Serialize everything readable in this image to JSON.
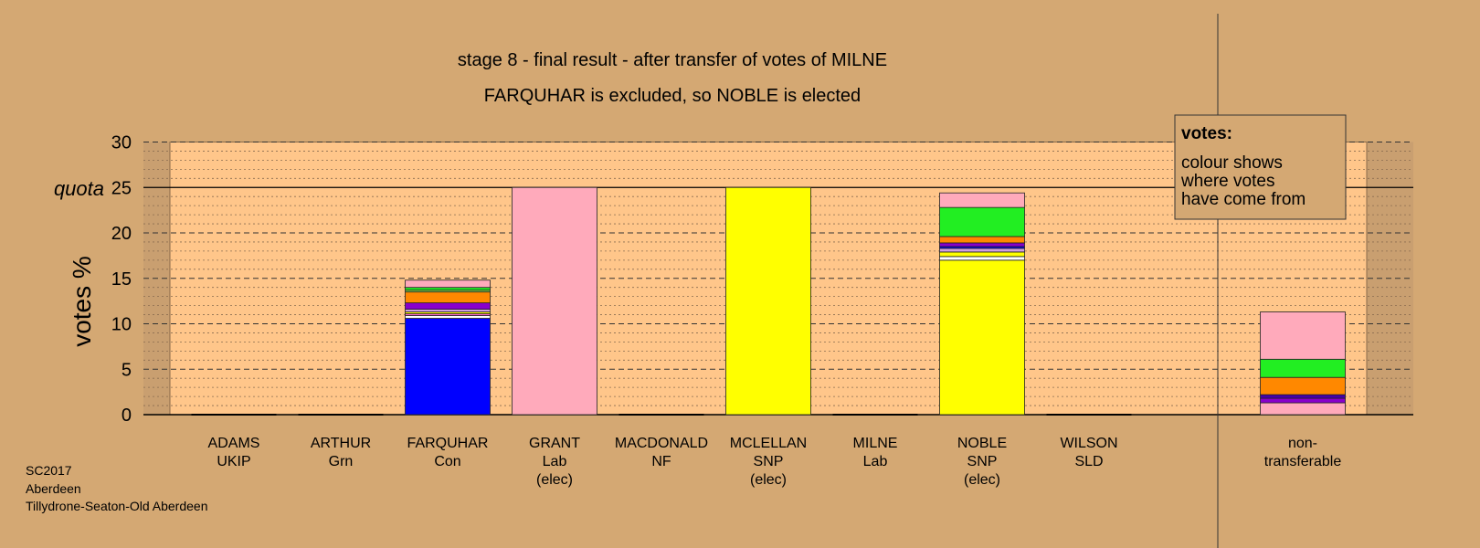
{
  "chart_data": {
    "type": "bar",
    "stacked": true,
    "title": "stage 8 - final result - after transfer of votes of MILNE",
    "subtitle": "FARQUHAR is excluded, so NOBLE is elected",
    "ylabel": "votes %",
    "ylim": [
      0,
      30
    ],
    "yticks": [
      "0",
      "5",
      "10",
      "15",
      "20",
      "25",
      "30"
    ],
    "quota_label": "quota",
    "quota": 25,
    "grid": true,
    "legend_position": "top-right",
    "legend": {
      "title": "votes:",
      "lines": [
        "colour shows",
        "where votes",
        "have come from"
      ]
    },
    "categories": [
      {
        "name": "ADAMS",
        "party": "UKIP",
        "status": ""
      },
      {
        "name": "ARTHUR",
        "party": "Grn",
        "status": ""
      },
      {
        "name": "FARQUHAR",
        "party": "Con",
        "status": ""
      },
      {
        "name": "GRANT",
        "party": "Lab",
        "status": "(elec)"
      },
      {
        "name": "MACDONALD",
        "party": "NF",
        "status": ""
      },
      {
        "name": "MCLELLAN",
        "party": "SNP",
        "status": "(elec)"
      },
      {
        "name": "MILNE",
        "party": "Lab",
        "status": ""
      },
      {
        "name": "NOBLE",
        "party": "SNP",
        "status": "(elec)"
      },
      {
        "name": "WILSON",
        "party": "SLD",
        "status": ""
      },
      {
        "name": "non-",
        "party": "transferable",
        "status": ""
      }
    ],
    "bars": [
      [],
      [],
      [
        {
          "color": "#0000ff",
          "value": 10.6
        },
        {
          "color": "#ffffff",
          "value": 0.3
        },
        {
          "color": "#ff66cc",
          "value": 0.2
        },
        {
          "color": "#ffff00",
          "value": 0.2
        },
        {
          "color": "#d1a0e0",
          "value": 0.3
        },
        {
          "color": "#8800cc",
          "value": 0.7
        },
        {
          "color": "#ff8800",
          "value": 1.2
        },
        {
          "color": "#88cc44",
          "value": 0.2
        },
        {
          "color": "#22ee22",
          "value": 0.3
        },
        {
          "color": "#ffaabb",
          "value": 0.8
        }
      ],
      [
        {
          "color": "#ffaabb",
          "value": 25.0
        }
      ],
      [],
      [
        {
          "color": "#ffff00",
          "value": 25.0
        }
      ],
      [],
      [
        {
          "color": "#ffff00",
          "value": 17.0
        },
        {
          "color": "#ffffff",
          "value": 0.4
        },
        {
          "color": "#ffff00",
          "value": 0.5
        },
        {
          "color": "#d1a0e0",
          "value": 0.4
        },
        {
          "color": "#0000ff",
          "value": 0.2
        },
        {
          "color": "#8800cc",
          "value": 0.4
        },
        {
          "color": "#ff8800",
          "value": 0.7
        },
        {
          "color": "#22ee22",
          "value": 3.2
        },
        {
          "color": "#ffaabb",
          "value": 1.6
        }
      ],
      [],
      [
        {
          "color": "#ffaabb",
          "value": 1.3
        },
        {
          "color": "#8800cc",
          "value": 0.5
        },
        {
          "color": "#4400aa",
          "value": 0.4
        },
        {
          "color": "#ff8800",
          "value": 1.9
        },
        {
          "color": "#22ee22",
          "value": 2.0
        },
        {
          "color": "#ffaabb",
          "value": 5.2
        }
      ]
    ]
  },
  "footer": {
    "line1": "SC2017",
    "line2": "Aberdeen",
    "line3": "Tillydrone-Seaton-Old Aberdeen"
  }
}
